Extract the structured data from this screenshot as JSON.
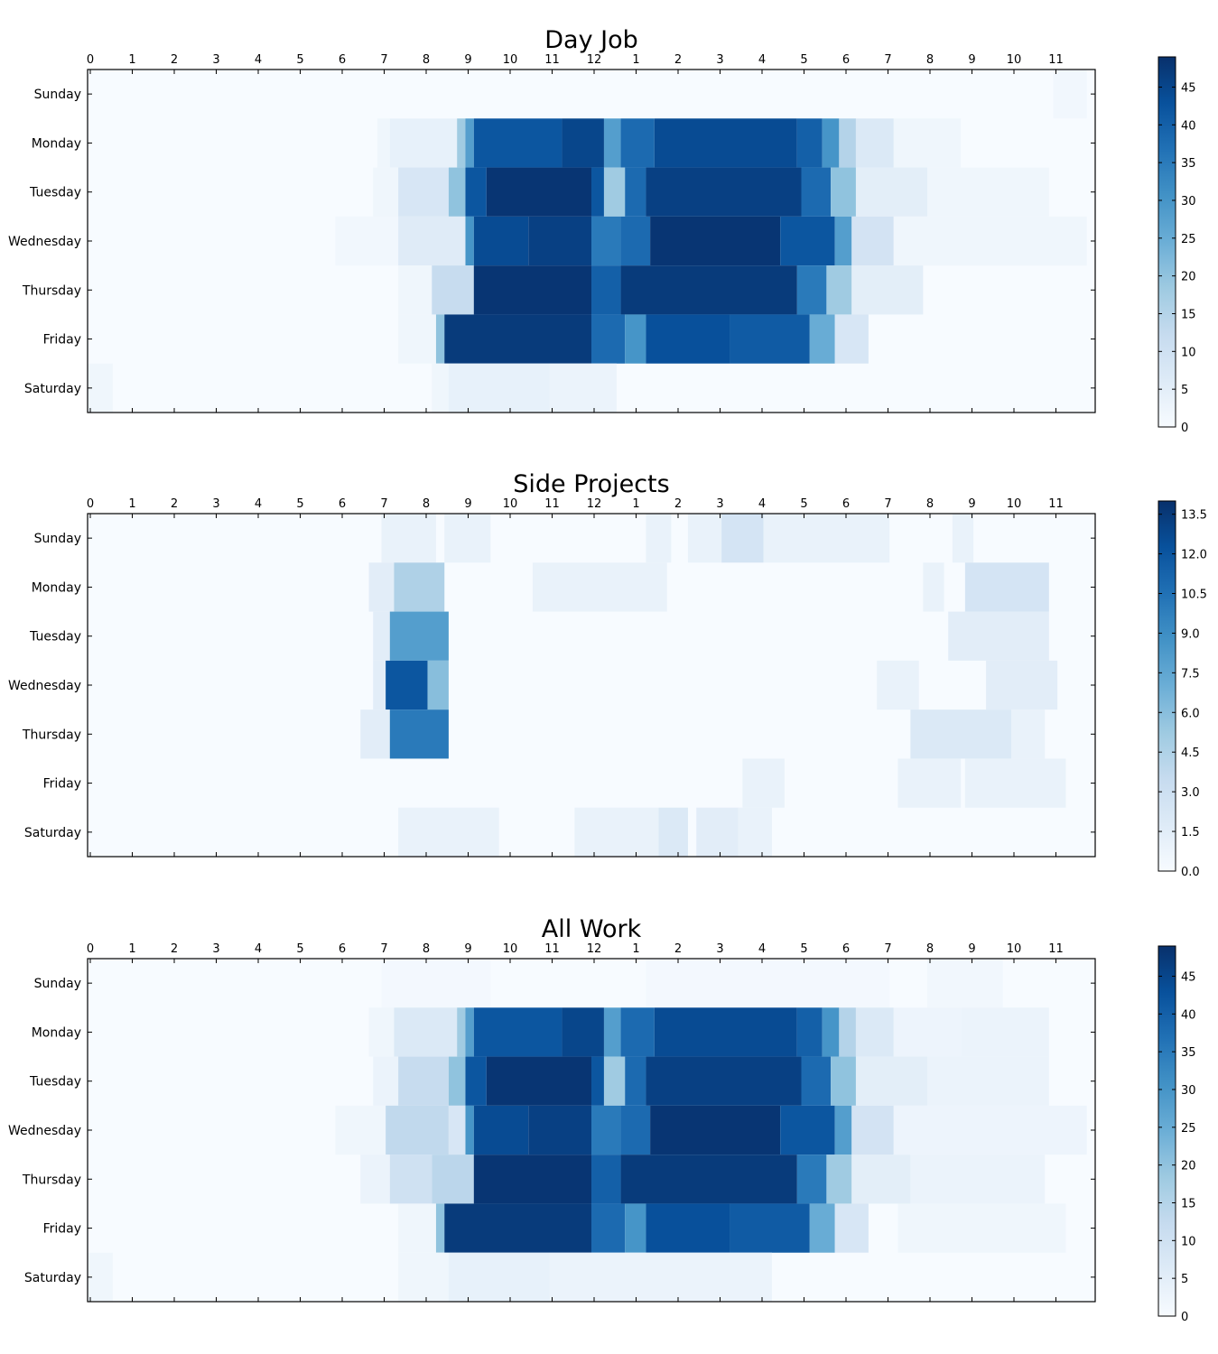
{
  "chart_data": [
    {
      "type": "heatmap",
      "title": "Day Job",
      "x_tick_labels": [
        "0",
        "1",
        "2",
        "3",
        "4",
        "5",
        "6",
        "7",
        "8",
        "9",
        "10",
        "11",
        "12",
        "1",
        "2",
        "3",
        "4",
        "5",
        "6",
        "7",
        "8",
        "9",
        "10",
        "11"
      ],
      "y_labels": [
        "Sunday",
        "Monday",
        "Tuesday",
        "Wednesday",
        "Thursday",
        "Friday",
        "Saturday"
      ],
      "bins_per_hour": 6,
      "colorbar_ticks": [
        0,
        5,
        10,
        15,
        20,
        25,
        30,
        35,
        40,
        45
      ],
      "colorbar_range": [
        0,
        49
      ],
      "colormap": "Blues",
      "grid": false,
      "activity": [
        [
          {
            "start": 23.0,
            "end": 23.8,
            "value": 1.5
          }
        ],
        [
          {
            "start": 6.9,
            "end": 7.2,
            "value": 2
          },
          {
            "start": 7.2,
            "end": 8.8,
            "value": 4
          },
          {
            "start": 8.8,
            "end": 9.0,
            "value": 18
          },
          {
            "start": 9.0,
            "end": 9.2,
            "value": 28
          },
          {
            "start": 9.2,
            "end": 11.3,
            "value": 42
          },
          {
            "start": 11.3,
            "end": 12.3,
            "value": 45
          },
          {
            "start": 12.3,
            "end": 12.7,
            "value": 28
          },
          {
            "start": 12.7,
            "end": 13.5,
            "value": 38
          },
          {
            "start": 13.5,
            "end": 16.9,
            "value": 44
          },
          {
            "start": 16.9,
            "end": 17.5,
            "value": 40
          },
          {
            "start": 17.5,
            "end": 17.9,
            "value": 30
          },
          {
            "start": 17.9,
            "end": 18.3,
            "value": 15
          },
          {
            "start": 18.3,
            "end": 19.2,
            "value": 7
          },
          {
            "start": 19.2,
            "end": 20.8,
            "value": 2
          }
        ],
        [
          {
            "start": 6.8,
            "end": 7.4,
            "value": 2
          },
          {
            "start": 7.4,
            "end": 8.6,
            "value": 8
          },
          {
            "start": 8.6,
            "end": 9.0,
            "value": 20
          },
          {
            "start": 9.0,
            "end": 9.5,
            "value": 42
          },
          {
            "start": 9.5,
            "end": 12.0,
            "value": 48
          },
          {
            "start": 12.0,
            "end": 12.3,
            "value": 42
          },
          {
            "start": 12.3,
            "end": 12.8,
            "value": 18
          },
          {
            "start": 12.8,
            "end": 13.3,
            "value": 38
          },
          {
            "start": 13.3,
            "end": 17.0,
            "value": 46
          },
          {
            "start": 17.0,
            "end": 17.7,
            "value": 38
          },
          {
            "start": 17.7,
            "end": 18.3,
            "value": 20
          },
          {
            "start": 18.3,
            "end": 20.0,
            "value": 5
          },
          {
            "start": 20.0,
            "end": 22.9,
            "value": 2
          }
        ],
        [
          {
            "start": 5.9,
            "end": 7.4,
            "value": 1.5
          },
          {
            "start": 7.4,
            "end": 9.0,
            "value": 6
          },
          {
            "start": 9.0,
            "end": 9.2,
            "value": 30
          },
          {
            "start": 9.2,
            "end": 10.5,
            "value": 44
          },
          {
            "start": 10.5,
            "end": 12.0,
            "value": 46
          },
          {
            "start": 12.0,
            "end": 12.7,
            "value": 35
          },
          {
            "start": 12.7,
            "end": 13.4,
            "value": 38
          },
          {
            "start": 13.4,
            "end": 16.5,
            "value": 48
          },
          {
            "start": 16.5,
            "end": 17.8,
            "value": 42
          },
          {
            "start": 17.8,
            "end": 18.2,
            "value": 28
          },
          {
            "start": 18.2,
            "end": 19.2,
            "value": 9
          },
          {
            "start": 19.2,
            "end": 23.8,
            "value": 2
          }
        ],
        [
          {
            "start": 7.4,
            "end": 8.2,
            "value": 2
          },
          {
            "start": 8.2,
            "end": 9.2,
            "value": 12
          },
          {
            "start": 9.2,
            "end": 12.0,
            "value": 48
          },
          {
            "start": 12.0,
            "end": 12.7,
            "value": 40
          },
          {
            "start": 12.7,
            "end": 16.9,
            "value": 47
          },
          {
            "start": 16.9,
            "end": 17.6,
            "value": 35
          },
          {
            "start": 17.6,
            "end": 18.2,
            "value": 18
          },
          {
            "start": 18.2,
            "end": 19.9,
            "value": 5
          }
        ],
        [
          {
            "start": 7.4,
            "end": 8.3,
            "value": 2
          },
          {
            "start": 8.3,
            "end": 8.5,
            "value": 20
          },
          {
            "start": 8.5,
            "end": 12.0,
            "value": 47
          },
          {
            "start": 12.0,
            "end": 12.8,
            "value": 38
          },
          {
            "start": 12.8,
            "end": 13.3,
            "value": 30
          },
          {
            "start": 13.3,
            "end": 15.3,
            "value": 43
          },
          {
            "start": 15.3,
            "end": 17.2,
            "value": 41
          },
          {
            "start": 17.2,
            "end": 17.8,
            "value": 25
          },
          {
            "start": 17.8,
            "end": 18.6,
            "value": 8
          }
        ],
        [
          {
            "start": -0.1,
            "end": 0.6,
            "value": 2
          },
          {
            "start": 8.2,
            "end": 8.6,
            "value": 2
          },
          {
            "start": 8.6,
            "end": 11.0,
            "value": 4
          },
          {
            "start": 11.0,
            "end": 12.6,
            "value": 3
          }
        ]
      ]
    },
    {
      "type": "heatmap",
      "title": "Side Projects",
      "x_tick_labels": [
        "0",
        "1",
        "2",
        "3",
        "4",
        "5",
        "6",
        "7",
        "8",
        "9",
        "10",
        "11",
        "12",
        "1",
        "2",
        "3",
        "4",
        "5",
        "6",
        "7",
        "8",
        "9",
        "10",
        "11"
      ],
      "y_labels": [
        "Sunday",
        "Monday",
        "Tuesday",
        "Wednesday",
        "Thursday",
        "Friday",
        "Saturday"
      ],
      "bins_per_hour": 6,
      "colorbar_ticks": [
        0.0,
        1.5,
        3.0,
        4.5,
        6.0,
        7.5,
        9.0,
        10.5,
        12.0,
        13.5
      ],
      "colorbar_range": [
        0,
        14
      ],
      "colormap": "Blues",
      "grid": false,
      "activity": [
        [
          {
            "start": 7.0,
            "end": 8.3,
            "value": 1
          },
          {
            "start": 8.5,
            "end": 9.6,
            "value": 1
          },
          {
            "start": 13.3,
            "end": 13.9,
            "value": 1
          },
          {
            "start": 14.3,
            "end": 15.1,
            "value": 1
          },
          {
            "start": 15.1,
            "end": 16.1,
            "value": 2.5
          },
          {
            "start": 16.1,
            "end": 17.0,
            "value": 1
          },
          {
            "start": 17.0,
            "end": 19.1,
            "value": 1
          },
          {
            "start": 20.6,
            "end": 21.1,
            "value": 1
          }
        ],
        [
          {
            "start": 6.7,
            "end": 7.3,
            "value": 1.5
          },
          {
            "start": 7.3,
            "end": 8.5,
            "value": 4.5
          },
          {
            "start": 10.6,
            "end": 13.8,
            "value": 1
          },
          {
            "start": 19.9,
            "end": 20.4,
            "value": 1
          },
          {
            "start": 20.9,
            "end": 22.9,
            "value": 2.5
          }
        ],
        [
          {
            "start": 6.8,
            "end": 7.2,
            "value": 1.5
          },
          {
            "start": 7.2,
            "end": 8.6,
            "value": 8
          },
          {
            "start": 20.5,
            "end": 22.9,
            "value": 1.5
          }
        ],
        [
          {
            "start": 6.8,
            "end": 7.1,
            "value": 1.5
          },
          {
            "start": 7.1,
            "end": 8.1,
            "value": 12
          },
          {
            "start": 8.1,
            "end": 8.6,
            "value": 6
          },
          {
            "start": 18.8,
            "end": 19.8,
            "value": 1
          },
          {
            "start": 21.4,
            "end": 23.1,
            "value": 1.5
          }
        ],
        [
          {
            "start": 6.5,
            "end": 7.2,
            "value": 1.5
          },
          {
            "start": 7.2,
            "end": 8.6,
            "value": 10
          },
          {
            "start": 19.6,
            "end": 22.0,
            "value": 2
          },
          {
            "start": 22.0,
            "end": 22.8,
            "value": 1
          }
        ],
        [
          {
            "start": 15.6,
            "end": 16.6,
            "value": 1
          },
          {
            "start": 19.3,
            "end": 20.8,
            "value": 1
          },
          {
            "start": 20.9,
            "end": 23.3,
            "value": 1
          }
        ],
        [
          {
            "start": 7.4,
            "end": 9.8,
            "value": 1
          },
          {
            "start": 11.6,
            "end": 13.6,
            "value": 1
          },
          {
            "start": 13.6,
            "end": 14.3,
            "value": 2
          },
          {
            "start": 14.5,
            "end": 15.5,
            "value": 1.5
          },
          {
            "start": 15.5,
            "end": 16.3,
            "value": 1
          }
        ]
      ]
    },
    {
      "type": "heatmap",
      "title": "All Work",
      "x_tick_labels": [
        "0",
        "1",
        "2",
        "3",
        "4",
        "5",
        "6",
        "7",
        "8",
        "9",
        "10",
        "11",
        "12",
        "1",
        "2",
        "3",
        "4",
        "5",
        "6",
        "7",
        "8",
        "9",
        "10",
        "11"
      ],
      "y_labels": [
        "Sunday",
        "Monday",
        "Tuesday",
        "Wednesday",
        "Thursday",
        "Friday",
        "Saturday"
      ],
      "bins_per_hour": 6,
      "colorbar_ticks": [
        0,
        5,
        10,
        15,
        20,
        25,
        30,
        35,
        40,
        45
      ],
      "colorbar_range": [
        0,
        49
      ],
      "colormap": "Blues",
      "grid": false,
      "activity": [
        [
          {
            "start": 7.0,
            "end": 9.6,
            "value": 1
          },
          {
            "start": 13.3,
            "end": 19.1,
            "value": 1
          },
          {
            "start": 20.0,
            "end": 21.8,
            "value": 1.5
          }
        ],
        [
          {
            "start": 6.7,
            "end": 7.3,
            "value": 2
          },
          {
            "start": 7.3,
            "end": 8.8,
            "value": 7
          },
          {
            "start": 8.8,
            "end": 9.0,
            "value": 18
          },
          {
            "start": 9.0,
            "end": 9.2,
            "value": 28
          },
          {
            "start": 9.2,
            "end": 11.3,
            "value": 42
          },
          {
            "start": 11.3,
            "end": 12.3,
            "value": 45
          },
          {
            "start": 12.3,
            "end": 12.7,
            "value": 28
          },
          {
            "start": 12.7,
            "end": 13.5,
            "value": 38
          },
          {
            "start": 13.5,
            "end": 16.9,
            "value": 44
          },
          {
            "start": 16.9,
            "end": 17.5,
            "value": 40
          },
          {
            "start": 17.5,
            "end": 17.9,
            "value": 30
          },
          {
            "start": 17.9,
            "end": 18.3,
            "value": 15
          },
          {
            "start": 18.3,
            "end": 19.2,
            "value": 7
          },
          {
            "start": 19.2,
            "end": 20.8,
            "value": 2.5
          },
          {
            "start": 20.8,
            "end": 22.9,
            "value": 3
          }
        ],
        [
          {
            "start": 6.8,
            "end": 7.4,
            "value": 3
          },
          {
            "start": 7.4,
            "end": 8.6,
            "value": 12
          },
          {
            "start": 8.6,
            "end": 9.0,
            "value": 20
          },
          {
            "start": 9.0,
            "end": 9.5,
            "value": 42
          },
          {
            "start": 9.5,
            "end": 12.0,
            "value": 48
          },
          {
            "start": 12.0,
            "end": 12.3,
            "value": 42
          },
          {
            "start": 12.3,
            "end": 12.8,
            "value": 18
          },
          {
            "start": 12.8,
            "end": 13.3,
            "value": 38
          },
          {
            "start": 13.3,
            "end": 17.0,
            "value": 46
          },
          {
            "start": 17.0,
            "end": 17.7,
            "value": 38
          },
          {
            "start": 17.7,
            "end": 18.3,
            "value": 20
          },
          {
            "start": 18.3,
            "end": 20.0,
            "value": 5
          },
          {
            "start": 20.0,
            "end": 22.9,
            "value": 3
          }
        ],
        [
          {
            "start": 5.9,
            "end": 7.1,
            "value": 2
          },
          {
            "start": 7.1,
            "end": 8.6,
            "value": 13
          },
          {
            "start": 8.6,
            "end": 9.0,
            "value": 8
          },
          {
            "start": 9.0,
            "end": 9.2,
            "value": 30
          },
          {
            "start": 9.2,
            "end": 10.5,
            "value": 44
          },
          {
            "start": 10.5,
            "end": 12.0,
            "value": 46
          },
          {
            "start": 12.0,
            "end": 12.7,
            "value": 35
          },
          {
            "start": 12.7,
            "end": 13.4,
            "value": 38
          },
          {
            "start": 13.4,
            "end": 16.5,
            "value": 48
          },
          {
            "start": 16.5,
            "end": 17.8,
            "value": 42
          },
          {
            "start": 17.8,
            "end": 18.2,
            "value": 28
          },
          {
            "start": 18.2,
            "end": 19.2,
            "value": 9
          },
          {
            "start": 19.2,
            "end": 23.8,
            "value": 2.5
          }
        ],
        [
          {
            "start": 6.5,
            "end": 7.2,
            "value": 3
          },
          {
            "start": 7.2,
            "end": 8.2,
            "value": 10
          },
          {
            "start": 8.2,
            "end": 9.2,
            "value": 14
          },
          {
            "start": 9.2,
            "end": 12.0,
            "value": 48
          },
          {
            "start": 12.0,
            "end": 12.7,
            "value": 40
          },
          {
            "start": 12.7,
            "end": 16.9,
            "value": 47
          },
          {
            "start": 16.9,
            "end": 17.6,
            "value": 35
          },
          {
            "start": 17.6,
            "end": 18.2,
            "value": 18
          },
          {
            "start": 18.2,
            "end": 19.6,
            "value": 5
          },
          {
            "start": 19.6,
            "end": 22.8,
            "value": 3
          }
        ],
        [
          {
            "start": 7.4,
            "end": 8.3,
            "value": 2
          },
          {
            "start": 8.3,
            "end": 8.5,
            "value": 20
          },
          {
            "start": 8.5,
            "end": 12.0,
            "value": 47
          },
          {
            "start": 12.0,
            "end": 12.8,
            "value": 38
          },
          {
            "start": 12.8,
            "end": 13.3,
            "value": 30
          },
          {
            "start": 13.3,
            "end": 15.3,
            "value": 43
          },
          {
            "start": 15.3,
            "end": 17.2,
            "value": 41
          },
          {
            "start": 17.2,
            "end": 17.8,
            "value": 25
          },
          {
            "start": 17.8,
            "end": 18.6,
            "value": 8
          },
          {
            "start": 19.3,
            "end": 23.3,
            "value": 2
          }
        ],
        [
          {
            "start": -0.1,
            "end": 0.6,
            "value": 2
          },
          {
            "start": 7.4,
            "end": 8.6,
            "value": 2
          },
          {
            "start": 8.6,
            "end": 11.0,
            "value": 4
          },
          {
            "start": 11.0,
            "end": 16.3,
            "value": 3
          }
        ]
      ]
    }
  ]
}
